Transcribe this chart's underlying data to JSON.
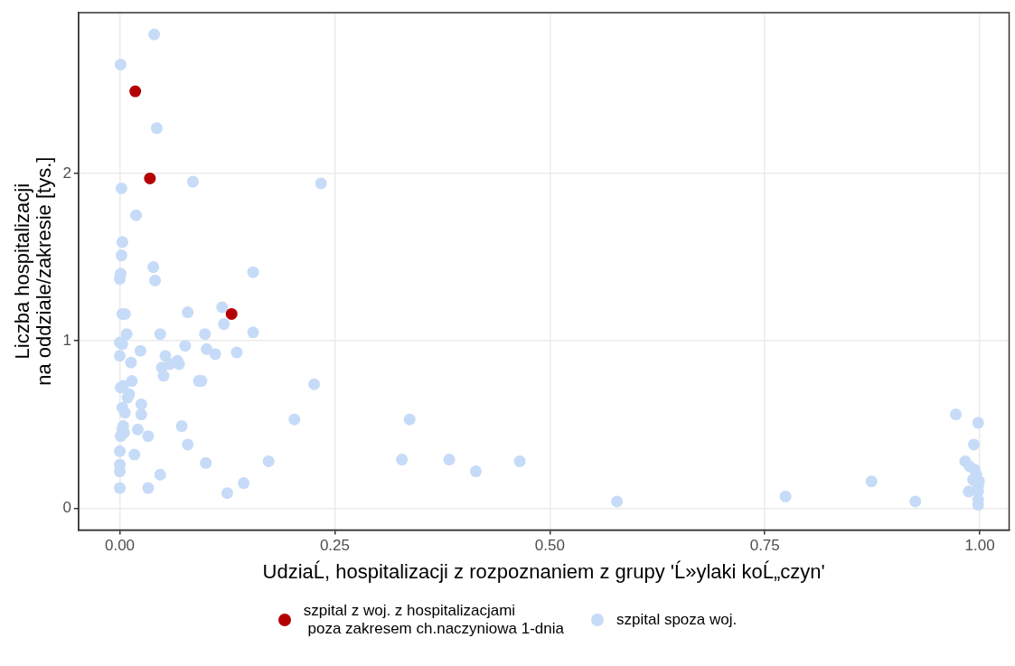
{
  "chart_data": {
    "type": "scatter",
    "xlabel": "UdziaĹ, hospitalizacji z rozpoznaniem z grupy 'Ĺ»ylaki koĹ„czyn'",
    "ylabel": "Liczba hospitalizacji\nna oddziale/zakresie [tys.]",
    "xlim": [
      -0.048,
      1.034
    ],
    "ylim": [
      -0.13,
      2.96
    ],
    "xticks": [
      {
        "value": 0,
        "label": "0.00"
      },
      {
        "value": 0.25,
        "label": "0.25"
      },
      {
        "value": 0.5,
        "label": "0.50"
      },
      {
        "value": 0.75,
        "label": "0.75"
      },
      {
        "value": 1,
        "label": "1.00"
      }
    ],
    "yticks": [
      0,
      1,
      2
    ],
    "grid": true,
    "legend": "bottom",
    "marker": "circle",
    "series": [
      {
        "name": "szpital z woj. z hospitalizacjami\n poza zakresem ch.naczyniowa 1-dnia",
        "color": "#b40000",
        "x": [
          0.018,
          0.035,
          0.13
        ],
        "values": [
          2.49,
          1.97,
          1.16
        ]
      },
      {
        "name": "szpital spoza woj.",
        "color": "#c6dbf7",
        "x": [
          0.04,
          0.001,
          0.043,
          0.085,
          0.234,
          0.002,
          0.019,
          0.003,
          0.002,
          0.039,
          0.001,
          0,
          0.155,
          0.041,
          0.079,
          0.119,
          0.121,
          0.003,
          0.006,
          0.008,
          0.047,
          0.099,
          0.155,
          0,
          0.003,
          0,
          0.024,
          0.076,
          0.101,
          0.111,
          0.136,
          0.053,
          0.067,
          0.069,
          0.058,
          0.049,
          0.051,
          0.013,
          0.014,
          0.004,
          0.001,
          0.092,
          0.095,
          0.011,
          0.009,
          0.025,
          0.003,
          0.006,
          0.025,
          0.226,
          0.004,
          0.003,
          0.001,
          0.005,
          0.072,
          0.021,
          0.033,
          0.337,
          0.203,
          0.079,
          0,
          0.017,
          0,
          0.1,
          0.173,
          0.328,
          0.383,
          0.414,
          0.465,
          0,
          0.047,
          0.144,
          0,
          0.033,
          0.125,
          0.578,
          0.774,
          0.874,
          0.925,
          0.972,
          0.998,
          0.993,
          0.983,
          0.988,
          0.994,
          0.996,
          0.992,
          0.998,
          0.987,
          0.998,
          0.998,
          0.998,
          0.999
        ],
        "values": [
          2.83,
          2.65,
          2.27,
          1.95,
          1.94,
          1.91,
          1.75,
          1.59,
          1.51,
          1.44,
          1.4,
          1.37,
          1.41,
          1.36,
          1.17,
          1.2,
          1.1,
          1.16,
          1.16,
          1.04,
          1.04,
          1.04,
          1.05,
          0.99,
          0.98,
          0.91,
          0.94,
          0.97,
          0.95,
          0.92,
          0.93,
          0.91,
          0.88,
          0.86,
          0.86,
          0.84,
          0.79,
          0.87,
          0.76,
          0.73,
          0.72,
          0.76,
          0.76,
          0.68,
          0.66,
          0.62,
          0.6,
          0.57,
          0.56,
          0.74,
          0.49,
          0.47,
          0.43,
          0.45,
          0.49,
          0.47,
          0.43,
          0.53,
          0.53,
          0.38,
          0.34,
          0.32,
          0.26,
          0.27,
          0.28,
          0.29,
          0.29,
          0.22,
          0.28,
          0.22,
          0.2,
          0.15,
          0.12,
          0.12,
          0.09,
          0.04,
          0.07,
          0.16,
          0.04,
          0.56,
          0.51,
          0.38,
          0.28,
          0.25,
          0.23,
          0.2,
          0.17,
          0.13,
          0.1,
          0.1,
          0.05,
          0.02,
          0.16
        ]
      }
    ]
  }
}
